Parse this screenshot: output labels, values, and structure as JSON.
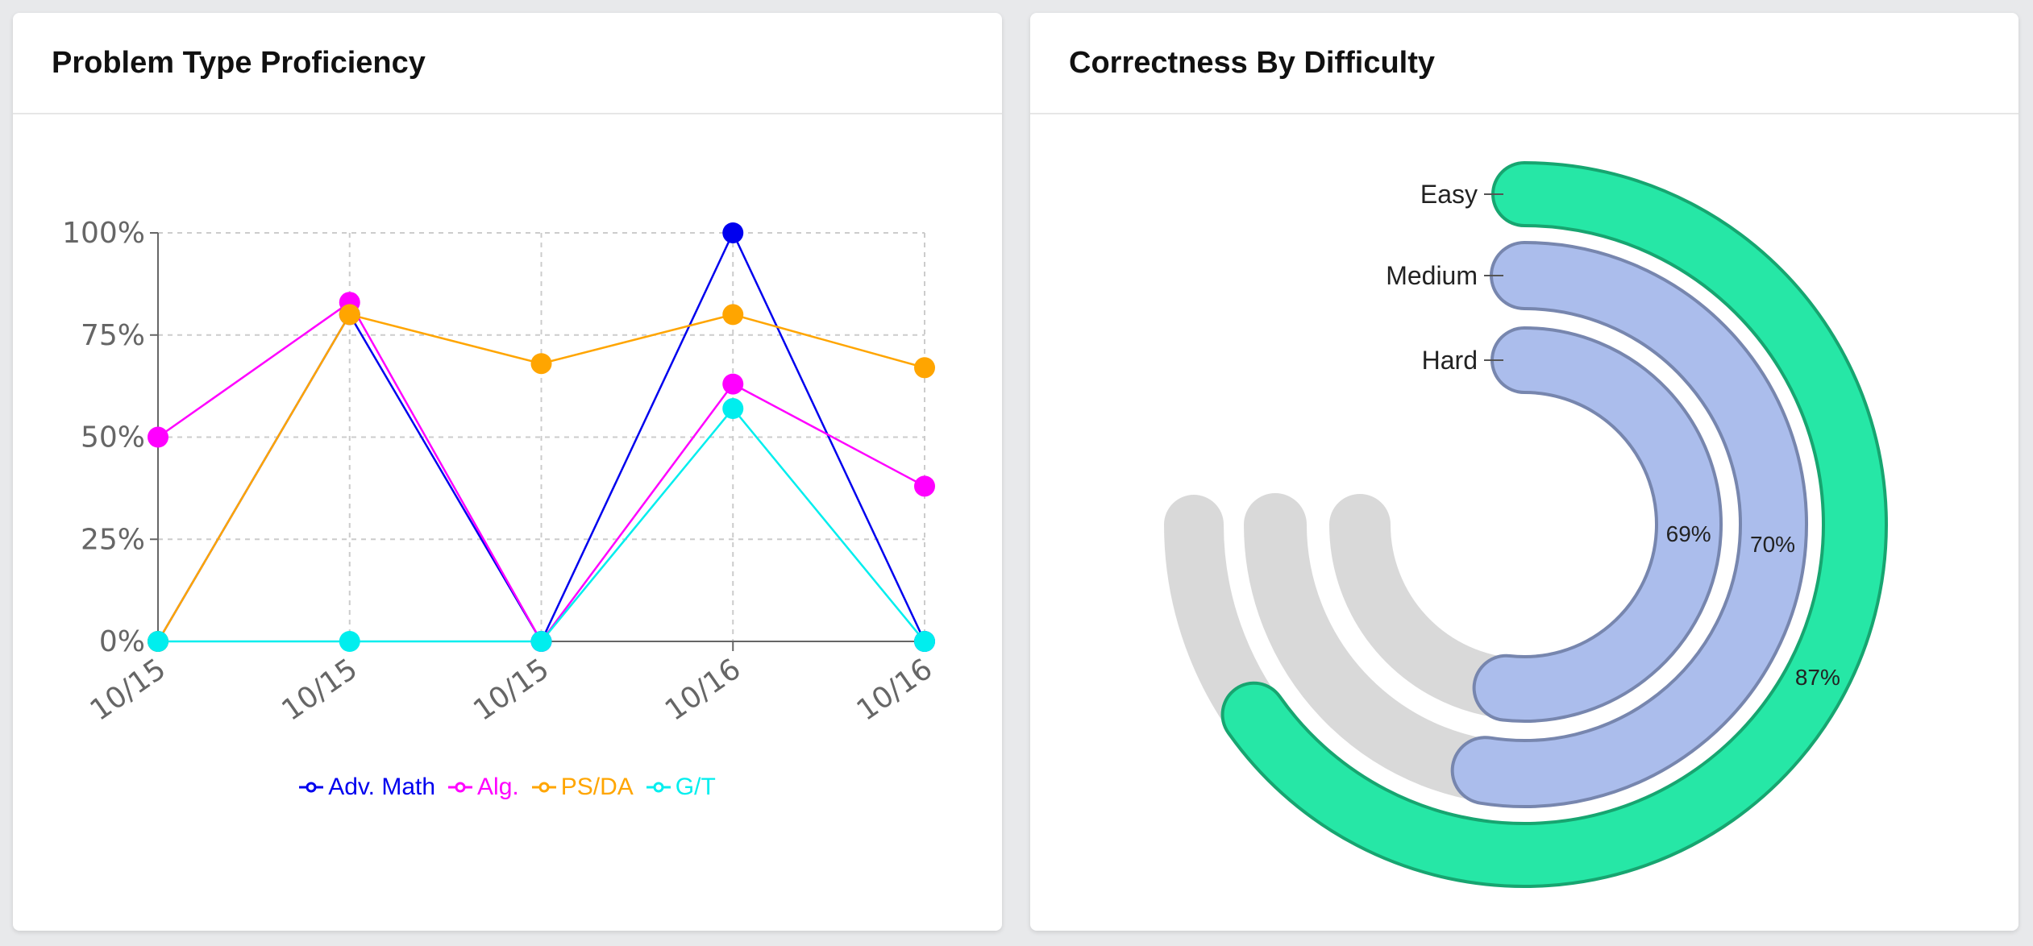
{
  "left_card": {
    "title": "Problem Type Proficiency"
  },
  "right_card": {
    "title": "Correctness By Difficulty"
  },
  "chart_data": [
    {
      "type": "line",
      "x": [
        "10/15",
        "10/15",
        "10/15",
        "10/16",
        "10/16"
      ],
      "yticks": [
        "0%",
        "25%",
        "50%",
        "75%",
        "100%"
      ],
      "ylim": [
        0,
        100
      ],
      "grid": true,
      "legend": "bottom",
      "series": [
        {
          "name": "Adv. Math",
          "color": "#0000ee",
          "values": [
            0,
            80,
            0,
            100,
            0
          ]
        },
        {
          "name": "Alg.",
          "color": "#ff00ff",
          "values": [
            50,
            83,
            0,
            63,
            38
          ]
        },
        {
          "name": "PS/DA",
          "color": "#ffa500",
          "values": [
            0,
            80,
            68,
            80,
            67
          ]
        },
        {
          "name": "G/T",
          "color": "#00eeee",
          "values": [
            0,
            0,
            0,
            57,
            0
          ]
        }
      ]
    },
    {
      "type": "radial-bar",
      "max_sweep_degrees": 270,
      "track_color": "#d9d9d9",
      "bars": [
        {
          "label": "Easy",
          "value": 87,
          "value_label": "87%",
          "fill": "#26e7a6",
          "stroke": "#17a570"
        },
        {
          "label": "Medium",
          "value": 70,
          "value_label": "70%",
          "fill": "#abbdec",
          "stroke": "#7786ae"
        },
        {
          "label": "Hard",
          "value": 69,
          "value_label": "69%",
          "fill": "#abbdec",
          "stroke": "#7786ae"
        }
      ]
    }
  ]
}
